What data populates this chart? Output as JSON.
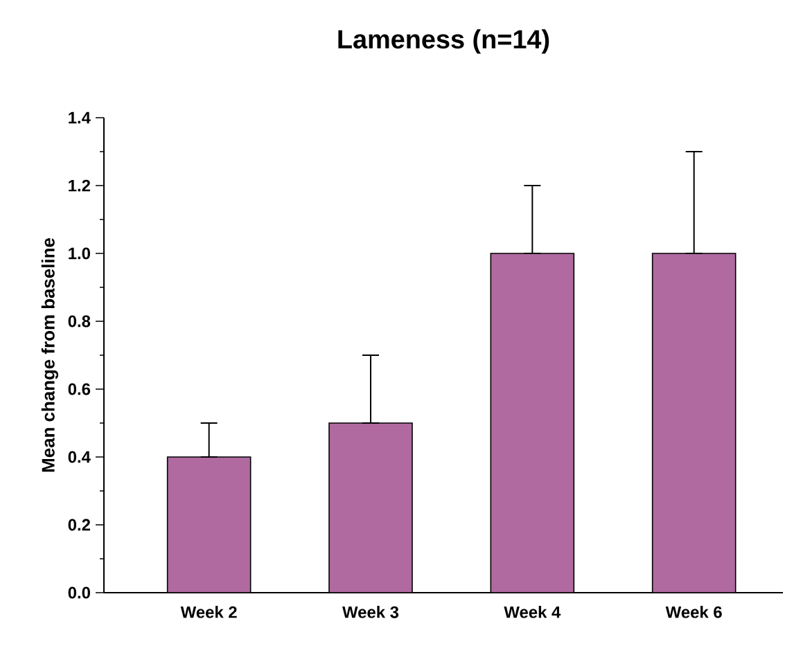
{
  "chart_data": {
    "type": "bar",
    "title": "Lameness (n=14)",
    "ylabel": "Mean change from baseline",
    "categories": [
      "Week 2",
      "Week 3",
      "Week 4",
      "Week 6"
    ],
    "values": [
      0.4,
      0.5,
      1.0,
      1.0
    ],
    "color": "#b06aa0",
    "errors": [
      [
        0.4,
        0.5
      ],
      [
        0.5,
        0.7
      ],
      [
        1.0,
        1.2
      ],
      [
        1.0,
        1.3
      ]
    ],
    "ylim": [
      0,
      1.4
    ],
    "yticks": [
      {
        "value": 0,
        "label": "0.0"
      },
      {
        "value": 0.2,
        "label": "0.2"
      },
      {
        "value": 0.4,
        "label": "0.4"
      },
      {
        "value": 0.6,
        "label": "0.6"
      },
      {
        "value": 0.8,
        "label": "0.8"
      },
      {
        "value": 1.0,
        "label": "1.0"
      },
      {
        "value": 1.2,
        "label": "1.2"
      },
      {
        "value": 1.4,
        "label": "1.4"
      }
    ],
    "grid": false
  }
}
